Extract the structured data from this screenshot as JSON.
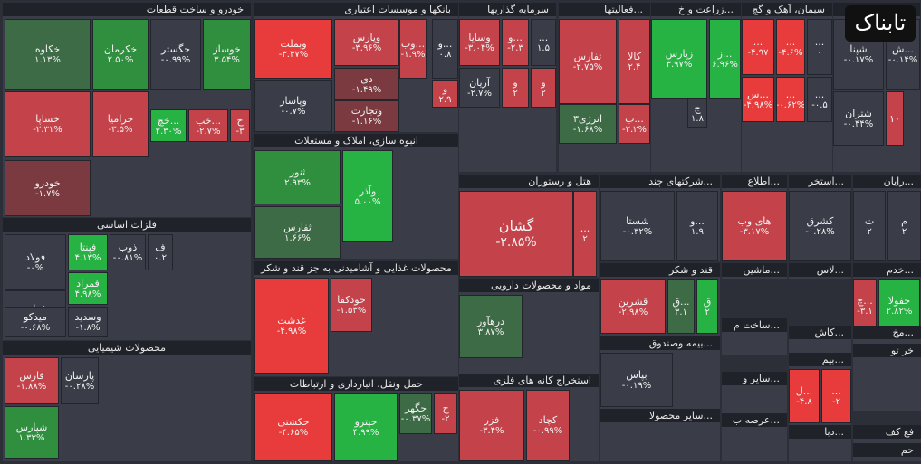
{
  "app": {
    "logo_text": "تابناک"
  },
  "colors": {
    "neutral": "#3a3d47",
    "positive_strong": "#27b343",
    "positive_mid": "#2f8f3e",
    "positive_dark": "#3d6b46",
    "negative_strong": "#e83b3b",
    "negative_mid": "#c4434a",
    "negative_dark": "#7a3a40"
  },
  "chart_data": {
    "type": "treemap",
    "sectors": [
      {
        "name": "خودرو و ساخت قطعات",
        "tiles": [
          {
            "name": "خکاوه",
            "change": "۱.۱۳%"
          },
          {
            "name": "خکرمان",
            "change": "۲.۵۰%"
          },
          {
            "name": "خگستر",
            "change": "-۰.۹۹%"
          },
          {
            "name": "خوساز",
            "change": "۳.۵۴%"
          },
          {
            "name": "خساپا",
            "change": "-۲.۳۱%"
          },
          {
            "name": "خزامیا",
            "change": "-۳.۵%"
          },
          {
            "name": "خچ...",
            "change": "۲.۳۰%"
          },
          {
            "name": "خب...",
            "change": "-۲.۷%"
          },
          {
            "name": "خ",
            "change": "-۳"
          },
          {
            "name": "خودرو",
            "change": "-۱.۷%"
          }
        ]
      },
      {
        "name": "بانکها و موسسات اعتباری",
        "tiles": [
          {
            "name": "وبملت",
            "change": "-۳.۴۷%"
          },
          {
            "name": "وپارس",
            "change": "-۳.۹۶%"
          },
          {
            "name": "وب...",
            "change": "-۱.۹%"
          },
          {
            "name": "و...",
            "change": "۰.۸"
          },
          {
            "name": "دی",
            "change": "-۱.۴۹%"
          },
          {
            "name": "و",
            "change": "۲.۹"
          },
          {
            "name": "وپاسار",
            "change": "-۰.۷%"
          },
          {
            "name": "وتجارت",
            "change": "-۱.۱۶%"
          }
        ]
      },
      {
        "name": "سرمایه گذاریها",
        "tiles": [
          {
            "name": "وسایا",
            "change": "-۳.۰۴%"
          },
          {
            "name": "و...",
            "change": "-۲.۳"
          },
          {
            "name": "...",
            "change": "۱.۵"
          },
          {
            "name": "آریان",
            "change": "-۲.۷%"
          },
          {
            "name": "و",
            "change": "۲"
          },
          {
            "name": "و",
            "change": "۲"
          }
        ]
      },
      {
        "name": "فعالیتها...",
        "tiles": [
          {
            "name": "تفارس",
            "change": "-۲.۷۵%"
          },
          {
            "name": "کالا",
            "change": "۲.۴"
          },
          {
            "name": "انرژی۳",
            "change": "-۱.۶۸%"
          },
          {
            "name": "ب...",
            "change": "-۲.۲%"
          }
        ]
      },
      {
        "name": "زراعت و خ...",
        "tiles": [
          {
            "name": "زپارس",
            "change": "۳.۹۷%"
          },
          {
            "name": "ز...",
            "change": "۶.۹۶%"
          },
          {
            "name": "ج",
            "change": "۱.۸"
          }
        ]
      },
      {
        "name": "سیمان، آهک و گچ",
        "tiles": [
          {
            "name": "...",
            "change": "-۴.۹۷"
          },
          {
            "name": "...",
            "change": "-۴.۶%"
          },
          {
            "name": "...",
            "change": "۰"
          },
          {
            "name": "س...",
            "change": "-۴.۹۸%"
          },
          {
            "name": "...",
            "change": "-۰.۶۲%"
          },
          {
            "name": "...",
            "change": "-۰.۵"
          }
        ]
      },
      {
        "name": "فراورده...",
        "tiles": [
          {
            "name": "شپنا",
            "change": "-۰.۱۷%"
          },
          {
            "name": "ش...",
            "change": "-۰.۱۴%"
          },
          {
            "name": "شتران",
            "change": "-۰.۴۴%"
          },
          {
            "name": "۱۰",
            "change": ""
          }
        ]
      },
      {
        "name": "انبوه سازی، املاک و مستغلات",
        "tiles": [
          {
            "name": "ثنور",
            "change": "۲.۹۳%"
          },
          {
            "name": "وآذر",
            "change": "۵.۰۰%"
          },
          {
            "name": "ثفارس",
            "change": "۱.۶۶%"
          }
        ]
      },
      {
        "name": "هتل و رستوران",
        "tiles": [
          {
            "name": "گشان",
            "change": "-۲.۸۵%",
            "big": true
          },
          {
            "name": "...",
            "change": "۲"
          }
        ]
      },
      {
        "name": "شرکتهای چند...",
        "tiles": [
          {
            "name": "شستا",
            "change": "-۰.۳۲%"
          },
          {
            "name": "و...",
            "change": "۱.۹"
          }
        ]
      },
      {
        "name": "اطلاع...",
        "tiles": [
          {
            "name": "های وب",
            "change": "-۳.۱۷%"
          }
        ]
      },
      {
        "name": "استخر...",
        "tiles": [
          {
            "name": "کشرق",
            "change": "-۰.۲۸%"
          }
        ]
      },
      {
        "name": "رایان...",
        "tiles": [
          {
            "name": "ت",
            "change": "۲"
          },
          {
            "name": "م",
            "change": "۲"
          }
        ]
      },
      {
        "name": "فلزات اساسی",
        "tiles": [
          {
            "name": "فولاد",
            "change": "-۰%"
          },
          {
            "name": "فپنتا",
            "change": "۴.۱۳%"
          },
          {
            "name": "ذوب",
            "change": "-۰.۸۱%"
          },
          {
            "name": "ف",
            "change": "۰.۲"
          },
          {
            "name": "فملی",
            "change": "-۰%"
          },
          {
            "name": "فمراد",
            "change": "۴.۹۸%"
          },
          {
            "name": "میدکو",
            "change": "-۰.۶۸%"
          },
          {
            "name": "وسدید",
            "change": "-۱.۸%"
          }
        ]
      },
      {
        "name": "محصولات غذایی و آشامیدنی به جز قند و شکر",
        "tiles": [
          {
            "name": "غدشت",
            "change": "-۴.۹۸%"
          },
          {
            "name": "خودکفا",
            "change": "-۱.۵۳%"
          }
        ]
      },
      {
        "name": "مواد و محصولات دارویی",
        "tiles": [
          {
            "name": "درهآور",
            "change": "۳.۸۷%"
          }
        ]
      },
      {
        "name": "قند و شکر",
        "tiles": [
          {
            "name": "قشرین",
            "change": "-۲.۹۸%"
          },
          {
            "name": "ق...",
            "change": "۳.۱"
          },
          {
            "name": "ق",
            "change": "۲"
          }
        ]
      },
      {
        "name": "ماشین...",
        "tiles": []
      },
      {
        "name": "محص...",
        "tiles": [
          {
            "name": "خفولا",
            "change": "۲.۸۲%"
          },
          {
            "name": "چ...",
            "change": "-۳.۱"
          }
        ]
      },
      {
        "name": "لاس...",
        "tiles": []
      },
      {
        "name": "خدم...",
        "tiles": []
      },
      {
        "name": "محصولات شیمیایی",
        "tiles": [
          {
            "name": "فارس",
            "change": "-۱.۸۸%"
          },
          {
            "name": "پارسان",
            "change": "-۰.۲۸%"
          },
          {
            "name": "شپارس",
            "change": "۱.۳۳%"
          }
        ]
      },
      {
        "name": "بیمه وصندوق...",
        "tiles": [
          {
            "name": "بپاس",
            "change": "-۰.۱۹%"
          }
        ]
      },
      {
        "name": "ساخت م...",
        "tiles": []
      },
      {
        "name": "کاش...",
        "tiles": []
      },
      {
        "name": "مخ...",
        "tiles": []
      },
      {
        "name": "حمل ونقل، انبارداری و ارتباطات",
        "tiles": [
          {
            "name": "حکشتی",
            "change": "-۴.۶۵%"
          },
          {
            "name": "حپترو",
            "change": "۴.۹۹%"
          },
          {
            "name": "حگهر",
            "change": "-۰.۳۷%"
          },
          {
            "name": "ح",
            "change": "-۲"
          }
        ]
      },
      {
        "name": "استخراج کانه های فلزی",
        "tiles": [
          {
            "name": "فزر",
            "change": "-۳.۴%"
          },
          {
            "name": "کچاد",
            "change": "-۰.۹۹%"
          }
        ]
      },
      {
        "name": "سایر و...",
        "tiles": []
      },
      {
        "name": "سایر محصولا...",
        "tiles": []
      },
      {
        "name": "عرضه ب...",
        "tiles": []
      },
      {
        "name": "بیم...",
        "tiles": [
          {
            "name": "ل...",
            "change": "-۴.۸"
          },
          {
            "name": "...",
            "change": "-۲"
          }
        ]
      },
      {
        "name": "دبا...",
        "tiles": []
      },
      {
        "name": "خر تو",
        "tiles": []
      },
      {
        "name": "حم",
        "tiles": []
      },
      {
        "name": "فع کف",
        "tiles": []
      }
    ]
  }
}
